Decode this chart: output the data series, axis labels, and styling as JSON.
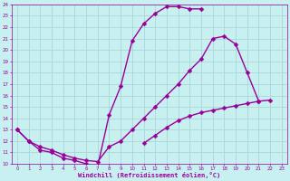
{
  "xlabel": "Windchill (Refroidissement éolien,°C)",
  "bg_color": "#c8f0f0",
  "grid_color": "#a8d8d8",
  "line_color": "#990099",
  "xlim": [
    -0.5,
    23.5
  ],
  "ylim": [
    10,
    24
  ],
  "xticks": [
    0,
    1,
    2,
    3,
    4,
    5,
    6,
    7,
    8,
    9,
    10,
    11,
    12,
    13,
    14,
    15,
    16,
    17,
    18,
    19,
    20,
    21,
    22,
    23
  ],
  "yticks": [
    10,
    11,
    12,
    13,
    14,
    15,
    16,
    17,
    18,
    19,
    20,
    21,
    22,
    23,
    24
  ],
  "line1_y": [
    13.0,
    12.0,
    11.2,
    11.0,
    10.5,
    10.3,
    10.0,
    9.8,
    14.3,
    16.8,
    20.8,
    22.3,
    23.2,
    23.8,
    23.8,
    23.6,
    23.6,
    null,
    null,
    null,
    null,
    null,
    null,
    null
  ],
  "line2_y": [
    13.0,
    12.0,
    11.5,
    11.2,
    10.8,
    10.5,
    10.3,
    10.2,
    11.5,
    12.0,
    13.0,
    14.0,
    15.0,
    16.0,
    17.0,
    18.2,
    19.2,
    21.0,
    21.2,
    20.5,
    18.0,
    15.5,
    null,
    null
  ],
  "line3_y": [
    null,
    null,
    null,
    null,
    null,
    null,
    null,
    null,
    null,
    null,
    null,
    11.8,
    12.5,
    13.2,
    13.8,
    14.2,
    14.5,
    14.7,
    14.9,
    15.1,
    15.3,
    15.5,
    15.6,
    null
  ],
  "line_combined": true,
  "curve1_x": [
    0,
    1,
    2,
    3,
    4,
    5,
    6,
    7,
    8,
    9,
    10,
    11,
    12,
    13,
    14,
    15,
    16
  ],
  "curve1_y": [
    13.0,
    12.0,
    11.2,
    11.0,
    10.5,
    10.3,
    10.0,
    9.8,
    14.3,
    16.8,
    20.8,
    22.3,
    23.2,
    23.8,
    23.8,
    23.6,
    23.6
  ],
  "curve2_x": [
    0,
    1,
    2,
    3,
    4,
    5,
    6,
    7,
    8,
    9,
    10,
    11,
    12,
    13,
    14,
    15,
    16,
    17,
    18,
    19,
    20,
    21
  ],
  "curve2_y": [
    13.0,
    12.0,
    11.5,
    11.2,
    10.8,
    10.5,
    10.3,
    10.2,
    11.5,
    12.0,
    13.0,
    14.0,
    15.0,
    16.0,
    17.0,
    18.2,
    19.2,
    21.0,
    21.2,
    20.5,
    18.0,
    15.5
  ],
  "curve3_x": [
    11,
    12,
    13,
    14,
    15,
    16,
    17,
    18,
    19,
    20,
    21,
    22
  ],
  "curve3_y": [
    11.8,
    12.5,
    13.2,
    13.8,
    14.2,
    14.5,
    14.7,
    14.9,
    15.1,
    15.3,
    15.5,
    15.6
  ],
  "marker": "D",
  "markersize": 2.5,
  "linewidth": 1.0
}
